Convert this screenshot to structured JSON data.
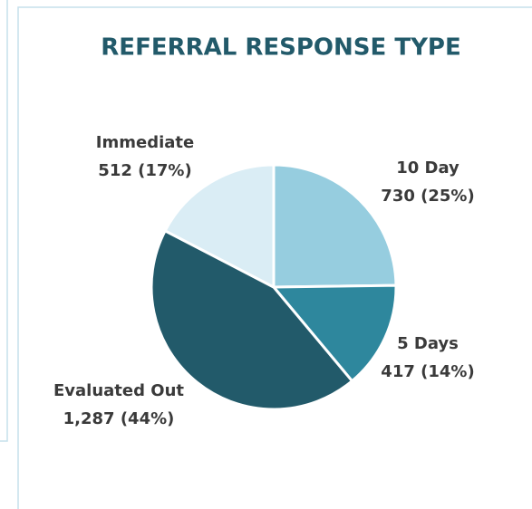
{
  "chart_data": {
    "type": "pie",
    "title": "REFERRAL RESPONSE TYPE",
    "categories": [
      "10 Day",
      "5 Days",
      "Evaluated Out",
      "Immediate"
    ],
    "values": [
      730,
      417,
      1287,
      512
    ],
    "value_labels": [
      "730 (25%)",
      "417 (14%)",
      "1,287 (44%)",
      "512 (17%)"
    ],
    "colors": [
      "#96cddf",
      "#2e879d",
      "#225a6a",
      "#daedf5"
    ]
  }
}
